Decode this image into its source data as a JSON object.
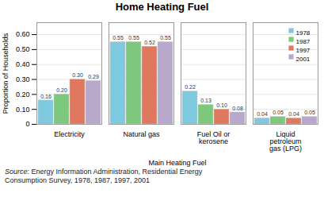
{
  "chart_data": {
    "type": "bar",
    "title": "Home Heating Fuel",
    "xlabel": "Main Heating Fuel",
    "ylabel": "Proportion of Households",
    "categories": [
      "Electricity",
      "Natural gas",
      "Fuel Oil or\nkerosene",
      "Liquid\npetroleum\ngas (LPG)"
    ],
    "series": [
      {
        "name": "1978",
        "color": "#7ec8e0",
        "values": [
          0.16,
          0.55,
          0.22,
          0.04
        ],
        "value_labels": [
          "0.16",
          "0.55",
          "0.22",
          "0.04"
        ]
      },
      {
        "name": "1987",
        "color": "#7ec87e",
        "values": [
          0.2,
          0.55,
          0.13,
          0.05
        ],
        "value_labels": [
          "0.20",
          "0.55",
          "0.13",
          "0.05"
        ]
      },
      {
        "name": "1997",
        "color": "#e07860",
        "values": [
          0.3,
          0.52,
          0.1,
          0.04
        ],
        "value_labels": [
          "0.30",
          "0.52",
          "0.10",
          "0.04"
        ]
      },
      {
        "name": "2001",
        "color": "#b8a8cc",
        "values": [
          0.29,
          0.55,
          0.08,
          0.05
        ],
        "value_labels": [
          "0.29",
          "0.55",
          "0.08",
          "0.05"
        ]
      }
    ],
    "ylim": [
      0,
      0.68
    ],
    "yticks": [
      0,
      {
        "value": 0.1,
        "label": "0.10"
      },
      {
        "value": 0.2,
        "label": "0.20"
      },
      {
        "value": 0.3,
        "label": "0.30"
      },
      {
        "value": 0.4,
        "label": "0.40"
      },
      {
        "value": 0.5,
        "label": "0.50"
      },
      {
        "value": 0.6,
        "label": "0.60"
      }
    ],
    "grid": true,
    "legend": "upper right",
    "data_labels": true,
    "annotations": [
      "Source",
      ": Energy Information Administration, Residential Energy\nConsumption Survey, 1978, 1987, 1997, 2001"
    ]
  }
}
